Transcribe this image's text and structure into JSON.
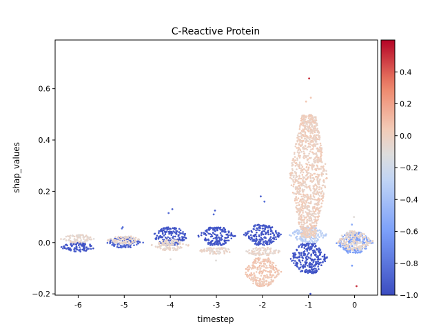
{
  "chart_data": {
    "type": "scatter",
    "subtype": "swarm (beeswarm) plot",
    "title": "C-Reactive Protein",
    "xlabel": "timestep",
    "ylabel": "shap_values",
    "categories": [
      "-6",
      "-5",
      "-4",
      "-3",
      "-2",
      "-1",
      "0"
    ],
    "ylim": [
      -0.205,
      0.79
    ],
    "yticks": [
      -0.2,
      0.0,
      0.2,
      0.4,
      0.6
    ],
    "ytick_labels": [
      "−0.2",
      "0.0",
      "0.2",
      "0.4",
      "0.6"
    ],
    "grid": false,
    "colorbar": {
      "colormap": "coolwarm",
      "range": [
        -1.0,
        0.6
      ],
      "ticks": [
        -1.0,
        -0.8,
        -0.6,
        -0.4,
        -0.2,
        0.0,
        0.2,
        0.4
      ],
      "tick_labels": [
        "−1.0",
        "−0.8",
        "−0.6",
        "−0.4",
        "−0.2",
        "0.0",
        "0.2",
        "0.4"
      ],
      "colors": [
        "#3b4cc0",
        "#7b9ff9",
        "#c0d4f5",
        "#dddddd",
        "#f2cbb7",
        "#ee8468",
        "#b40426"
      ]
    },
    "series": [
      {
        "category": "-6",
        "bands": [
          {
            "y_min": -0.035,
            "y_max": 0.0,
            "color_value": -0.95
          },
          {
            "y_min": 0.0,
            "y_max": 0.03,
            "color_value": -0.05
          }
        ],
        "outliers": [
          {
            "y": -0.035,
            "color_value": -0.9
          },
          {
            "y": 0.03,
            "color_value": -0.1
          }
        ]
      },
      {
        "category": "-5",
        "bands": [
          {
            "y_min": -0.02,
            "y_max": 0.02,
            "color_value": -0.9
          },
          {
            "y_min": -0.005,
            "y_max": 0.025,
            "color_value": -0.05
          }
        ],
        "outliers": [
          {
            "y": 0.06,
            "color_value": -0.85
          },
          {
            "y": 0.055,
            "color_value": -0.8
          }
        ]
      },
      {
        "category": "-4",
        "bands": [
          {
            "y_min": -0.01,
            "y_max": 0.06,
            "color_value": -0.95
          },
          {
            "y_min": -0.03,
            "y_max": 0.01,
            "color_value": -0.05
          }
        ],
        "outliers": [
          {
            "y": 0.13,
            "color_value": -0.9
          },
          {
            "y": 0.115,
            "color_value": -0.85
          },
          {
            "y": -0.065,
            "color_value": -0.1
          }
        ]
      },
      {
        "category": "-3",
        "bands": [
          {
            "y_min": -0.01,
            "y_max": 0.06,
            "color_value": -0.95
          },
          {
            "y_min": -0.045,
            "y_max": -0.02,
            "color_value": -0.05
          }
        ],
        "outliers": [
          {
            "y": 0.125,
            "color_value": -0.9
          },
          {
            "y": 0.11,
            "color_value": -0.85
          },
          {
            "y": -0.07,
            "color_value": -0.1
          }
        ]
      },
      {
        "category": "-2",
        "bands": [
          {
            "y_min": -0.01,
            "y_max": 0.07,
            "color_value": -0.95
          },
          {
            "y_min": -0.05,
            "y_max": -0.02,
            "color_value": -0.05
          },
          {
            "y_min": -0.17,
            "y_max": -0.06,
            "color_value": 0.05
          }
        ],
        "outliers": [
          {
            "y": 0.18,
            "color_value": -0.9
          },
          {
            "y": 0.16,
            "color_value": -0.85
          },
          {
            "y": -0.17,
            "color_value": 0.05
          }
        ]
      },
      {
        "category": "-1",
        "bands": [
          {
            "y_min": -0.12,
            "y_max": 0.0,
            "color_value": -0.95
          },
          {
            "y_min": 0.0,
            "y_max": 0.06,
            "color_value": -0.3
          },
          {
            "y_min": 0.02,
            "y_max": 0.5,
            "color_value": 0.0
          }
        ],
        "outliers": [
          {
            "y": 0.64,
            "color_value": 0.5
          },
          {
            "y": 0.565,
            "color_value": 0.05
          },
          {
            "y": 0.55,
            "color_value": 0.05
          },
          {
            "y": -0.2,
            "color_value": -0.95
          }
        ]
      },
      {
        "category": "0",
        "bands": [
          {
            "y_min": -0.04,
            "y_max": 0.04,
            "color_value": -0.6
          },
          {
            "y_min": -0.03,
            "y_max": 0.045,
            "color_value": -0.05
          }
        ],
        "outliers": [
          {
            "y": 0.1,
            "color_value": -0.1
          },
          {
            "y": 0.07,
            "color_value": -0.5
          },
          {
            "y": -0.17,
            "color_value": 0.5
          },
          {
            "y": -0.09,
            "color_value": -0.6
          }
        ]
      }
    ]
  }
}
